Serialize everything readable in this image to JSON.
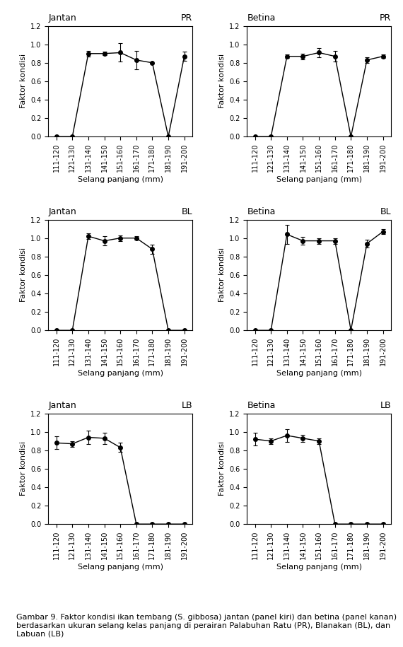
{
  "chart_data": [
    {
      "type": "line",
      "categories": [
        "111-120",
        "121-130",
        "131-140",
        "141-150",
        "151-160",
        "161-170",
        "171-180",
        "181-190",
        "191-200"
      ],
      "values": [
        0.0,
        0.0,
        0.9,
        0.9,
        0.91,
        0.83,
        0.8,
        0.0,
        0.87
      ],
      "errors": [
        0.0,
        0.0,
        0.03,
        0.02,
        0.1,
        0.1,
        0.0,
        0.0,
        0.05
      ],
      "color": "black",
      "marker": "o",
      "xlabel": "Selang panjang (mm)",
      "ylabel": "Faktor kondisi",
      "annotations": [
        "Jantan",
        "PR"
      ],
      "ylim": [
        0.0,
        1.2
      ],
      "yticks": [
        {
          "value": 0.0,
          "label": "0.0"
        },
        {
          "value": 0.2,
          "label": "0.2"
        },
        {
          "value": 0.4,
          "label": "0.4"
        },
        {
          "value": 0.6,
          "label": "0.6"
        },
        {
          "value": 0.8,
          "label": "0.8"
        },
        {
          "value": 1.0,
          "label": "1.0"
        },
        {
          "value": 1.2,
          "label": "1.2"
        }
      ]
    },
    {
      "type": "line",
      "categories": [
        "111-120",
        "121-130",
        "131-140",
        "141-150",
        "151-160",
        "161-170",
        "171-180",
        "181-190",
        "191-200"
      ],
      "values": [
        0.0,
        0.0,
        0.87,
        0.87,
        0.91,
        0.87,
        0.0,
        0.83,
        0.87
      ],
      "errors": [
        0.0,
        0.0,
        0.02,
        0.03,
        0.05,
        0.06,
        0.0,
        0.03,
        0.02
      ],
      "color": "black",
      "marker": "o",
      "xlabel": "Selang panjang (mm)",
      "ylabel": "Faktor kondisi",
      "annotations": [
        "Betina",
        "PR"
      ],
      "ylim": [
        0.0,
        1.2
      ],
      "yticks": [
        {
          "value": 0.0,
          "label": "0.0"
        },
        {
          "value": 0.2,
          "label": "0.2"
        },
        {
          "value": 0.4,
          "label": "0.4"
        },
        {
          "value": 0.6,
          "label": "0.6"
        },
        {
          "value": 0.8,
          "label": "0.8"
        },
        {
          "value": 1.0,
          "label": "1.0"
        },
        {
          "value": 1.2,
          "label": "1.2"
        }
      ]
    },
    {
      "type": "line",
      "categories": [
        "111-120",
        "121-130",
        "131-140",
        "141-150",
        "151-160",
        "161-170",
        "171-180",
        "181-190",
        "191-200"
      ],
      "values": [
        0.0,
        0.0,
        1.02,
        0.97,
        1.0,
        1.0,
        0.88,
        0.0,
        0.0
      ],
      "errors": [
        0.0,
        0.0,
        0.03,
        0.05,
        0.03,
        0.02,
        0.05,
        0.0,
        0.0
      ],
      "color": "black",
      "marker": "o",
      "xlabel": "Selang panjang (mm)",
      "ylabel": "Faktor kondisi",
      "annotations": [
        "Jantan",
        "BL"
      ],
      "ylim": [
        0.0,
        1.2
      ],
      "yticks": [
        {
          "value": 0.0,
          "label": "0.0"
        },
        {
          "value": 0.2,
          "label": "0.2"
        },
        {
          "value": 0.4,
          "label": "0.4"
        },
        {
          "value": 0.6,
          "label": "0.6"
        },
        {
          "value": 0.8,
          "label": "0.8"
        },
        {
          "value": 1.0,
          "label": "1.0"
        },
        {
          "value": 1.2,
          "label": "1.2"
        }
      ]
    },
    {
      "type": "line",
      "categories": [
        "111-120",
        "121-130",
        "131-140",
        "141-150",
        "151-160",
        "161-170",
        "171-180",
        "181-190",
        "191-200"
      ],
      "values": [
        0.0,
        0.0,
        1.04,
        0.97,
        0.97,
        0.97,
        0.0,
        0.94,
        1.07
      ],
      "errors": [
        0.0,
        0.0,
        0.1,
        0.04,
        0.03,
        0.03,
        0.0,
        0.04,
        0.03
      ],
      "color": "black",
      "marker": "o",
      "xlabel": "Selang panjang (mm)",
      "ylabel": "Faktor kondisi",
      "annotations": [
        "Betina",
        "BL"
      ],
      "ylim": [
        0.0,
        1.2
      ],
      "yticks": [
        {
          "value": 0.0,
          "label": "0.0"
        },
        {
          "value": 0.2,
          "label": "0.2"
        },
        {
          "value": 0.4,
          "label": "0.4"
        },
        {
          "value": 0.6,
          "label": "0.6"
        },
        {
          "value": 0.8,
          "label": "0.8"
        },
        {
          "value": 1.0,
          "label": "1.0"
        },
        {
          "value": 1.2,
          "label": "1.2"
        }
      ]
    },
    {
      "type": "line",
      "categories": [
        "111-120",
        "121-130",
        "131-140",
        "141-150",
        "151-160",
        "161-170",
        "171-180",
        "181-190",
        "191-200"
      ],
      "values": [
        0.88,
        0.87,
        0.94,
        0.93,
        0.83,
        0.0,
        0.0,
        0.0,
        0.0
      ],
      "errors": [
        0.07,
        0.03,
        0.07,
        0.06,
        0.05,
        0.0,
        0.0,
        0.0,
        0.0
      ],
      "color": "black",
      "marker": "o",
      "xlabel": "Selang panjang (mm)",
      "ylabel": "Faktor kondisi",
      "annotations": [
        "Jantan",
        "LB"
      ],
      "ylim": [
        0.0,
        1.2
      ],
      "yticks": [
        {
          "value": 0.0,
          "label": "0.0"
        },
        {
          "value": 0.2,
          "label": "0.2"
        },
        {
          "value": 0.4,
          "label": "0.4"
        },
        {
          "value": 0.6,
          "label": "0.6"
        },
        {
          "value": 0.8,
          "label": "0.8"
        },
        {
          "value": 1.0,
          "label": "1.0"
        },
        {
          "value": 1.2,
          "label": "1.2"
        }
      ]
    },
    {
      "type": "line",
      "categories": [
        "111-120",
        "121-130",
        "131-140",
        "141-150",
        "151-160",
        "161-170",
        "171-180",
        "181-190",
        "191-200"
      ],
      "values": [
        0.92,
        0.9,
        0.96,
        0.93,
        0.9,
        0.0,
        0.0,
        0.0,
        0.0
      ],
      "errors": [
        0.07,
        0.03,
        0.07,
        0.04,
        0.03,
        0.0,
        0.0,
        0.0,
        0.0
      ],
      "color": "black",
      "marker": "o",
      "xlabel": "Selang panjang (mm)",
      "ylabel": "Faktor kondisi",
      "annotations": [
        "Betina",
        "LB"
      ],
      "ylim": [
        0.0,
        1.2
      ],
      "yticks": [
        {
          "value": 0.0,
          "label": "0.0"
        },
        {
          "value": 0.2,
          "label": "0.2"
        },
        {
          "value": 0.4,
          "label": "0.4"
        },
        {
          "value": 0.6,
          "label": "0.6"
        },
        {
          "value": 0.8,
          "label": "0.8"
        },
        {
          "value": 1.0,
          "label": "1.0"
        },
        {
          "value": 1.2,
          "label": "1.2"
        }
      ]
    }
  ],
  "caption": "Gambar 9. Faktor kondisi ikan tembang (S. gibbosa) jantan (panel kiri) dan betina (panel kanan) berdasarkan ukuran selang kelas panjang di perairan Palabuhan Ratu (PR), Blanakan (BL), dan Labuan (LB)"
}
